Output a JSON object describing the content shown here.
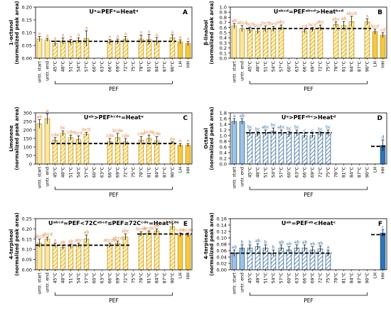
{
  "categories": [
    "untr. start",
    "untr. end",
    "45°C",
    "48°C",
    "51°C",
    "54°C",
    "57°C",
    "60°C",
    "63°C",
    "66°C",
    "69°C",
    "72°C",
    "75°C",
    "78°C",
    "81°C",
    "84°C",
    "87°C",
    "90°C",
    "LH",
    "HH"
  ],
  "colors": {
    "yellow": "#F5C842",
    "yellow_dark": "#E0A800",
    "blue": "#2E75B6",
    "blue_light": "#9DC3E6",
    "label_orange": "#E8833A",
    "label_blue": "#2E75B6"
  },
  "chart_data": [
    {
      "panel": "A",
      "type": "bar",
      "theme": "yellow",
      "formula": "Uᵃ=PEFᵃ=Heatᵃ",
      "ylabel_line1": "1-octanol",
      "ylabel_line2": "(normalized peak area)",
      "ylim": [
        0,
        0.2
      ],
      "yticks": [
        0,
        0.05,
        0.1,
        0.15,
        0.2
      ],
      "tick_decimals": 2,
      "group_label": "PEF",
      "values": [
        0.075,
        0.072,
        0.057,
        0.067,
        0.063,
        0.07,
        0.077,
        null,
        null,
        0.063,
        0.065,
        0.075,
        null,
        0.075,
        0.073,
        0.066,
        null,
        0.08,
        0.064,
        0.057
      ],
      "errors": [
        0.01,
        0.006,
        0.01,
        0.012,
        0.01,
        0.01,
        0.03,
        null,
        null,
        0.01,
        0.01,
        0.01,
        null,
        0.015,
        0.02,
        0.015,
        null,
        0.012,
        0.008,
        0.008
      ],
      "letters": [
        "a",
        "a",
        "a",
        "a",
        "a",
        "a",
        "a",
        null,
        null,
        "a",
        "a",
        "a",
        null,
        "a",
        "a",
        "a",
        null,
        "a",
        "a",
        "a"
      ],
      "reference": 0.066
    },
    {
      "panel": "B",
      "type": "bar",
      "theme": "yellow",
      "formula": "Uᵃᵇᶜᵈ=PEFᵃᵇᶜᵈ>Heatᵇᶜᵈ",
      "ylabel_line1": "β-linalool",
      "ylabel_line2": "(normalized peak area)",
      "ylim": [
        0,
        1.0
      ],
      "yticks": [
        0,
        0.1,
        0.2,
        0.3,
        0.4,
        0.5,
        0.6,
        0.7,
        0.8,
        0.9,
        1.0
      ],
      "tick_decimals": 1,
      "group_label": "PEF",
      "values": [
        0.63,
        0.58,
        0.55,
        0.53,
        0.57,
        0.57,
        0.6,
        null,
        null,
        0.53,
        0.56,
        0.6,
        null,
        0.66,
        0.64,
        0.72,
        null,
        0.71,
        0.52,
        0.45
      ],
      "errors": [
        0.05,
        0.06,
        0.06,
        0.05,
        0.06,
        0.05,
        0.05,
        null,
        null,
        0.04,
        0.04,
        0.05,
        null,
        0.05,
        0.08,
        0.1,
        null,
        0.06,
        0.05,
        0.05
      ],
      "letters": [
        "ab",
        "abcd",
        "bcd",
        "bcd",
        "bcd",
        "bcd",
        "abc",
        null,
        null,
        "cd",
        "bcd",
        "abc",
        null,
        "abc",
        "ab",
        "abcd",
        null,
        "a",
        "bcd",
        "cd"
      ],
      "reference": 0.58
    },
    {
      "panel": "C",
      "type": "bar",
      "theme": "yellow",
      "formula": "Uᵃᵇ>PEFᵇᶜᵈᵉ=Heatᵉ",
      "ylabel_line1": "Limonene",
      "ylabel_line2": "(normalized peak area)",
      "ylim": [
        0,
        300
      ],
      "yticks": [
        0,
        50,
        100,
        150,
        200,
        250,
        300
      ],
      "tick_decimals": 0,
      "group_label": "PEF",
      "values": [
        235,
        265,
        140,
        180,
        155,
        145,
        175,
        null,
        null,
        130,
        155,
        130,
        null,
        140,
        150,
        135,
        null,
        125,
        110,
        110
      ],
      "errors": [
        25,
        30,
        15,
        15,
        15,
        20,
        10,
        null,
        null,
        20,
        25,
        20,
        null,
        20,
        20,
        25,
        null,
        5,
        10,
        10
      ],
      "letters": [
        "ab",
        "a",
        "cde",
        "bc",
        "cde",
        "bcd",
        "bcd",
        null,
        null,
        "cde",
        "bcde",
        "cde",
        null,
        "cde",
        "bcde",
        "cde",
        null,
        "de",
        "e",
        "e"
      ],
      "reference": 120
    },
    {
      "panel": "D",
      "type": "bar",
      "theme": "blue",
      "formula": "Uᵃ>PEFᵃᵇᶜ>Heatᵈ",
      "ylabel_line1": "Octanal",
      "ylabel_line2": "(normalized peak area)",
      "ylim": [
        0,
        1.8
      ],
      "yticks": [
        0,
        0.2,
        0.4,
        0.6,
        0.8,
        1.0,
        1.2,
        1.4,
        1.6,
        1.8
      ],
      "tick_decimals": 1,
      "group_label": "PEF",
      "values": [
        1.5,
        1.5,
        1.1,
        1.05,
        1.1,
        1.15,
        1.1,
        1.05,
        1.1,
        1.0,
        1.0,
        1.05,
        1.1,
        null,
        null,
        null,
        null,
        null,
        null,
        0.65
      ],
      "errors": [
        0.1,
        0.1,
        0.1,
        0.08,
        0.1,
        0.12,
        0.1,
        0.1,
        0.1,
        0.08,
        0.08,
        0.08,
        0.1,
        null,
        null,
        null,
        null,
        null,
        null,
        0.2
      ],
      "letters": [
        "a",
        "ab",
        "bc",
        "bc",
        "abc",
        "bc",
        "abc",
        "bc",
        "bc",
        "c",
        "c",
        "bc",
        "bc",
        null,
        null,
        null,
        null,
        null,
        null,
        "d"
      ],
      "reference": 1.1,
      "reference_span": [
        2,
        12
      ],
      "reference2": 0.62,
      "reference2_span": [
        18,
        19
      ]
    },
    {
      "panel": "E",
      "type": "bar",
      "theme": "yellow",
      "formula": "Uᵃᵇᶜᵈ=PEF<72Cᵃᵇᶜᵈ≤PEF≥72Cᶜᵈᵉ=Heatᵇᶜᵈᵉ",
      "ylabel_line1": "4-terpineol",
      "ylabel_line2": "(normalized peak area)",
      "ylim": [
        0,
        0.25
      ],
      "yticks": [
        0,
        0.05,
        0.1,
        0.15,
        0.2,
        0.25
      ],
      "tick_decimals": 2,
      "group_label": "PEF",
      "values": [
        0.13,
        0.15,
        0.12,
        0.11,
        0.115,
        0.12,
        0.15,
        null,
        null,
        0.12,
        0.13,
        0.16,
        null,
        0.175,
        0.18,
        0.19,
        null,
        0.21,
        0.17,
        0.17
      ],
      "errors": [
        0.02,
        0.01,
        0.01,
        0.01,
        0.01,
        0.01,
        0.02,
        null,
        null,
        0.01,
        0.01,
        0.015,
        null,
        0.01,
        0.01,
        0.01,
        null,
        0.015,
        0.01,
        0.01
      ],
      "letters": [
        "abcd",
        "abcd",
        "a",
        "ab",
        "ab",
        "abc",
        "ab",
        null,
        null,
        "abcde",
        "abcd",
        "abc",
        null,
        "bcde",
        "bcde",
        "de",
        null,
        "e",
        "cde",
        "bcde"
      ],
      "reference": 0.12,
      "reference_span": [
        0,
        11
      ],
      "reference2": 0.175,
      "reference2_span": [
        13,
        19
      ]
    },
    {
      "panel": "F",
      "type": "bar",
      "theme": "blue",
      "formula": "Uᵃᵇ=PEFᵃᵇ<Heatᶜ",
      "ylabel_line1": "4-terpineol",
      "ylabel_line2": "(normalized peak area)",
      "ylim": [
        0,
        0.16
      ],
      "yticks": [
        0,
        0.02,
        0.04,
        0.06,
        0.08,
        0.1,
        0.12,
        0.14,
        0.16
      ],
      "tick_decimals": 2,
      "group_label": "PEF",
      "values": [
        0.052,
        0.068,
        0.068,
        0.072,
        0.068,
        0.052,
        0.068,
        0.062,
        0.068,
        0.068,
        0.062,
        0.065,
        0.052,
        null,
        null,
        null,
        null,
        null,
        null,
        0.115
      ],
      "errors": [
        0.01,
        0.01,
        0.01,
        0.01,
        0.01,
        0.01,
        0.01,
        0.01,
        0.01,
        0.01,
        0.01,
        0.01,
        0.01,
        null,
        null,
        null,
        null,
        null,
        null,
        0.01
      ],
      "letters": [
        "ab",
        "b",
        "b",
        "ab",
        "b",
        "b",
        "ab",
        "ab",
        "ab",
        "ab",
        "ab",
        "ab",
        "a",
        null,
        null,
        null,
        null,
        null,
        null,
        "c"
      ],
      "reference": 0.052,
      "reference_span": [
        0,
        12
      ],
      "reference2": 0.11,
      "reference2_span": [
        18,
        19
      ]
    }
  ]
}
